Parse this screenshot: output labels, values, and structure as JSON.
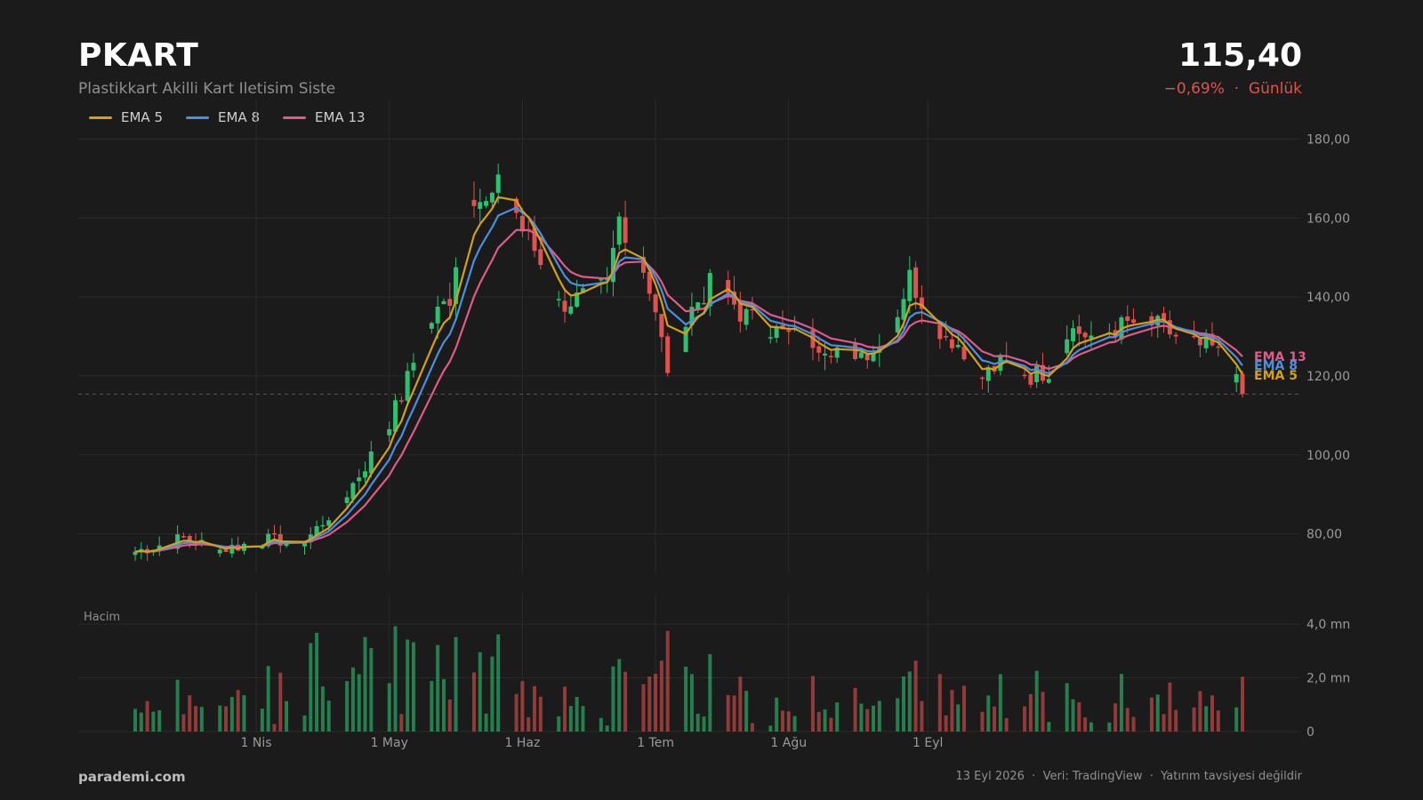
{
  "header": {
    "ticker": "PKART",
    "company": "Plastikkart Akilli Kart Iletisim Siste",
    "price": "115,40",
    "change": "−0,69%",
    "separator": "·",
    "period": "Günlük"
  },
  "footer": {
    "brand": "parademi.com",
    "note": "13 Eyl 2026  ·  Veri: TradingView  ·  Yatırım tavsiyesi değildir"
  },
  "colors": {
    "up": "#2fbf71",
    "down": "#e0524f",
    "ema5": "#d4a017",
    "ema8": "#4a90e2",
    "ema13": "#e05a8a",
    "grid": "#2a2a2a",
    "axis_text": "#9a9a9a",
    "last_price_line": "#e0524f"
  },
  "chart_data": {
    "type": "candlestick",
    "price_ticks": [
      "80,00",
      "100,00",
      "120,00",
      "140,00",
      "160,00",
      "180,00"
    ],
    "price_tick_values": [
      80,
      100,
      120,
      140,
      160,
      180
    ],
    "ylim": [
      70,
      190
    ],
    "volume_title": "Hacim",
    "volume_ticks": [
      "0",
      "2,0 mn",
      "4,0 mn"
    ],
    "volume_tick_values": [
      0,
      2.0,
      4.0
    ],
    "volume_ylim": [
      0,
      4.5
    ],
    "x_labels": [
      "1 Nis",
      "1 May",
      "1 Haz",
      "1 Tem",
      "1 Ağu",
      "1 Eyl"
    ],
    "last_price": 115.4,
    "legend": [
      "EMA 5",
      "EMA 8",
      "EMA 13"
    ],
    "end_labels": [
      "EMA 13",
      "EMA 8",
      "EMA 5"
    ],
    "anchors": [
      [
        0,
        75.5
      ],
      [
        8,
        79
      ],
      [
        14,
        76
      ],
      [
        22,
        78.5
      ],
      [
        28,
        78
      ],
      [
        34,
        88
      ],
      [
        40,
        102
      ],
      [
        44,
        115
      ],
      [
        48,
        132
      ],
      [
        52,
        140
      ],
      [
        55,
        168
      ],
      [
        58,
        163
      ],
      [
        61,
        170
      ],
      [
        64,
        157
      ],
      [
        66,
        152
      ],
      [
        70,
        138
      ],
      [
        74,
        140
      ],
      [
        78,
        143
      ],
      [
        80,
        160
      ],
      [
        84,
        148
      ],
      [
        86,
        135
      ],
      [
        88,
        122
      ],
      [
        92,
        137
      ],
      [
        96,
        145
      ],
      [
        100,
        136
      ],
      [
        106,
        131
      ],
      [
        112,
        129
      ],
      [
        116,
        127
      ],
      [
        120,
        126
      ],
      [
        124,
        128
      ],
      [
        128,
        145
      ],
      [
        132,
        133
      ],
      [
        136,
        128
      ],
      [
        139,
        118
      ],
      [
        141,
        121
      ],
      [
        144,
        124
      ],
      [
        148,
        120
      ],
      [
        152,
        122
      ],
      [
        154,
        132
      ],
      [
        158,
        130
      ],
      [
        162,
        132
      ],
      [
        166,
        134
      ],
      [
        170,
        132
      ],
      [
        174,
        128
      ],
      [
        178,
        127
      ],
      [
        180,
        124
      ],
      [
        182,
        118
      ],
      [
        183,
        115.4
      ]
    ]
  }
}
